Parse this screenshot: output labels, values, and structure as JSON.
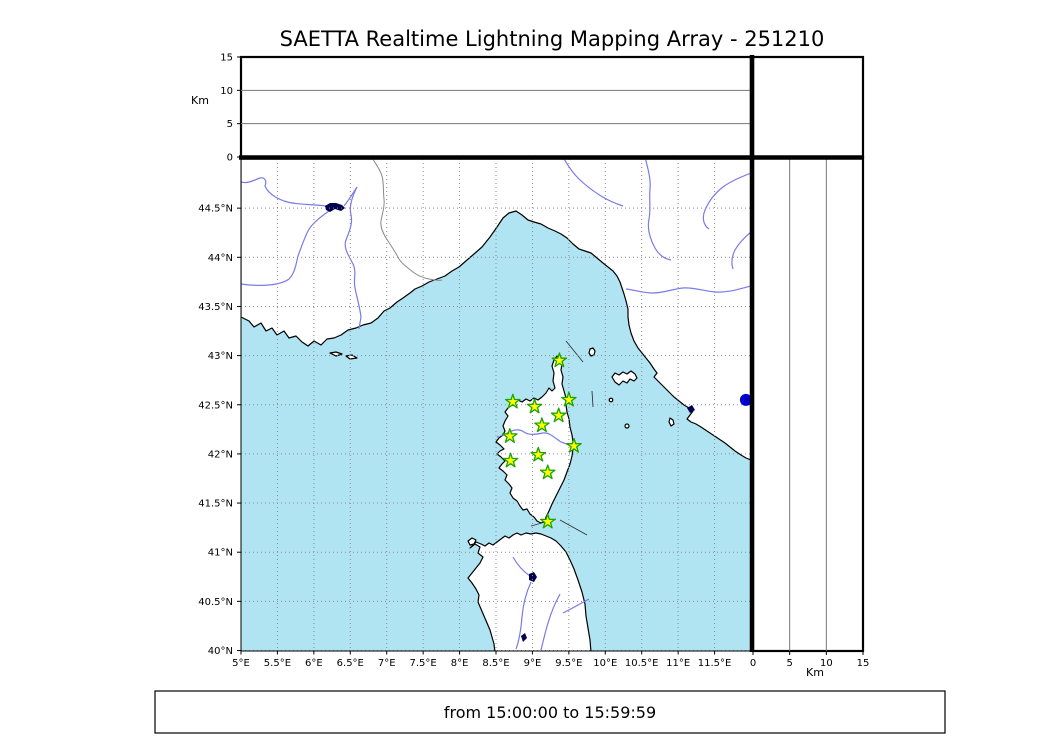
{
  "title": "SAETTA Realtime Lightning Mapping Array - 251210",
  "footer": {
    "time_range": "from 15:00:00 to 15:59:59"
  },
  "colors": {
    "sea": "#b0e4f2",
    "land": "#ffffff",
    "coast": "#000000",
    "river": "#7a7ae8",
    "admin_border": "#8a8a8a",
    "grid": "#8c8c8c",
    "station_fill": "#ffff00",
    "station_edge": "#1aa400",
    "event_fill": "#0000cc",
    "lake": "#00004d"
  },
  "chart_data": {
    "type": "scatter",
    "title": "SAETTA Realtime Lightning Mapping Array - 251210",
    "map_panel": {
      "xlim": [
        5,
        12
      ],
      "ylim": [
        40,
        45
      ],
      "lon_tick_values": [
        5,
        5.5,
        6,
        6.5,
        7,
        7.5,
        8,
        8.5,
        9,
        9.5,
        10,
        10.5,
        11,
        11.5
      ],
      "lon_tick_labels": [
        "5°E",
        "5.5°E",
        "6°E",
        "6.5°E",
        "7°E",
        "7.5°E",
        "8°E",
        "8.5°E",
        "9°E",
        "9.5°E",
        "10°E",
        "10.5°E",
        "11°E",
        "11.5°E"
      ],
      "lat_tick_values": [
        40,
        40.5,
        41,
        41.5,
        42,
        42.5,
        43,
        43.5,
        44,
        44.5
      ],
      "lat_tick_labels": [
        "40°N",
        "40.5°N",
        "41°N",
        "41.5°N",
        "42°N",
        "42.5°N",
        "43°N",
        "43.5°N",
        "44°N",
        "44.5°N"
      ],
      "grid": "dotted 0.5deg",
      "stations": [
        {
          "lon": 9.37,
          "lat": 42.95
        },
        {
          "lon": 8.73,
          "lat": 42.53
        },
        {
          "lon": 9.03,
          "lat": 42.48
        },
        {
          "lon": 9.5,
          "lat": 42.55
        },
        {
          "lon": 9.36,
          "lat": 42.39
        },
        {
          "lon": 9.13,
          "lat": 42.29
        },
        {
          "lon": 8.69,
          "lat": 42.18
        },
        {
          "lon": 9.57,
          "lat": 42.08
        },
        {
          "lon": 9.08,
          "lat": 41.99
        },
        {
          "lon": 8.7,
          "lat": 41.93
        },
        {
          "lon": 9.21,
          "lat": 41.81
        },
        {
          "lon": 9.21,
          "lat": 41.31
        }
      ],
      "events": [
        {
          "lon": 11.93,
          "lat": 42.55
        }
      ]
    },
    "alt_lon_panel": {
      "axis_label": "Km",
      "ylim": [
        0,
        15
      ],
      "tick_values": [
        0,
        5,
        10,
        15
      ],
      "tick_labels": [
        "0",
        "5",
        "10",
        "15"
      ],
      "gridlines": [
        5,
        10
      ],
      "points": []
    },
    "alt_lat_panel": {
      "axis_label": "Km",
      "xlim": [
        0,
        15
      ],
      "tick_values": [
        0,
        5,
        10,
        15
      ],
      "tick_labels": [
        "0",
        "5",
        "10",
        "15"
      ],
      "gridlines": [
        5,
        10
      ],
      "points": []
    }
  }
}
